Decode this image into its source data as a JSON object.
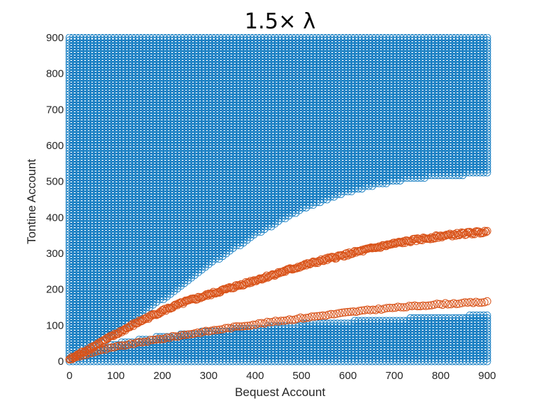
{
  "chart_data": {
    "type": "scatter",
    "title": "1.5× λ",
    "xlabel": "Bequest Account",
    "ylabel": "Tontine Account",
    "xlim": [
      0,
      900
    ],
    "ylim": [
      0,
      900
    ],
    "xticks": [
      "0",
      "100",
      "200",
      "300",
      "400",
      "500",
      "600",
      "700",
      "800",
      "900"
    ],
    "yticks": [
      "0",
      "100",
      "200",
      "300",
      "400",
      "500",
      "600",
      "700",
      "800",
      "900"
    ],
    "marker": "open-circle",
    "grid": false,
    "series": [
      {
        "color": "#0072BD",
        "region": "filled",
        "description_points": {
          "upper_region_lower_boundary": [
            [
              0,
              20
            ],
            [
              100,
              80
            ],
            [
              200,
              170
            ],
            [
              300,
              265
            ],
            [
              400,
              350
            ],
            [
              500,
              420
            ],
            [
              600,
              470
            ],
            [
              700,
              500
            ],
            [
              800,
              515
            ],
            [
              900,
              520
            ]
          ],
          "upper_region_upper_boundary": 900,
          "lower_region_upper_boundary": [
            [
              0,
              20
            ],
            [
              100,
              50
            ],
            [
              200,
              70
            ],
            [
              300,
              85
            ],
            [
              400,
              95
            ],
            [
              500,
              105
            ],
            [
              600,
              112
            ],
            [
              700,
              118
            ],
            [
              800,
              124
            ],
            [
              900,
              130
            ]
          ],
          "lower_region_lower_boundary": 0
        }
      },
      {
        "color": "#D95319",
        "curve": [
          [
            0,
            5
          ],
          [
            50,
            40
          ],
          [
            100,
            75
          ],
          [
            150,
            110
          ],
          [
            200,
            140
          ],
          [
            250,
            165
          ],
          [
            300,
            185
          ],
          [
            350,
            205
          ],
          [
            400,
            225
          ],
          [
            450,
            245
          ],
          [
            500,
            265
          ],
          [
            550,
            282
          ],
          [
            600,
            298
          ],
          [
            650,
            313
          ],
          [
            700,
            327
          ],
          [
            750,
            338
          ],
          [
            800,
            348
          ],
          [
            850,
            355
          ],
          [
            900,
            360
          ]
        ]
      },
      {
        "color": "#D95319",
        "curve": [
          [
            0,
            5
          ],
          [
            50,
            25
          ],
          [
            100,
            40
          ],
          [
            150,
            52
          ],
          [
            200,
            63
          ],
          [
            250,
            74
          ],
          [
            300,
            84
          ],
          [
            350,
            94
          ],
          [
            400,
            103
          ],
          [
            450,
            112
          ],
          [
            500,
            120
          ],
          [
            550,
            128
          ],
          [
            600,
            136
          ],
          [
            650,
            143
          ],
          [
            700,
            149
          ],
          [
            750,
            154
          ],
          [
            800,
            159
          ],
          [
            850,
            162
          ],
          [
            900,
            165
          ]
        ]
      }
    ]
  }
}
